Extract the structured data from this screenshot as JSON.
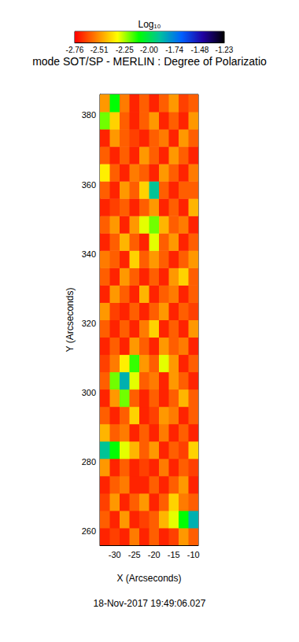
{
  "chart_data": {
    "type": "heatmap",
    "title": "mode SOT/SP - MERLIN : Degree of Polarizatio",
    "x_label": "X (Arcseconds)",
    "y_label": "Y (Arcseconds)",
    "date": "18-Nov-2017 19:49:06.027",
    "xlim": [
      -33.75,
      -8.75
    ],
    "ylim": [
      256,
      386
    ],
    "xticks": [
      -30,
      -25,
      -20,
      -15,
      -10
    ],
    "yticks": [
      260,
      280,
      300,
      320,
      340,
      360,
      380
    ],
    "x_bins": [
      -33.75,
      -31.25,
      -28.75,
      -26.25,
      -23.75,
      -21.25,
      -18.75,
      -16.25,
      -13.75,
      -11.25,
      -8.75
    ],
    "y_bins": [
      256,
      261,
      266,
      271,
      276,
      281,
      286,
      291,
      296,
      301,
      306,
      311,
      316,
      321,
      326,
      331,
      336,
      341,
      346,
      351,
      356,
      361,
      366,
      371,
      376,
      381,
      386
    ],
    "values": [
      [
        -2.7,
        -2.65,
        -2.7,
        -2.55,
        -2.7,
        -2.6,
        -2.7,
        -2.65,
        -2.5,
        -2.6
      ],
      [
        -2.6,
        -2.7,
        -2.5,
        -2.7,
        -2.65,
        -2.6,
        -2.45,
        -2.3,
        -2.1,
        -1.85
      ],
      [
        -2.65,
        -2.5,
        -2.7,
        -2.6,
        -2.5,
        -2.7,
        -2.6,
        -2.4,
        -2.55,
        -2.6
      ],
      [
        -2.7,
        -2.6,
        -2.55,
        -2.7,
        -2.7,
        -2.6,
        -2.7,
        -2.6,
        -2.5,
        -2.7
      ],
      [
        -2.5,
        -2.7,
        -2.6,
        -2.7,
        -2.65,
        -2.7,
        -2.55,
        -2.7,
        -2.6,
        -2.65
      ],
      [
        -1.9,
        -2.1,
        -2.3,
        -2.45,
        -2.6,
        -2.5,
        -2.7,
        -2.6,
        -2.65,
        -2.4
      ],
      [
        -2.45,
        -2.6,
        -2.55,
        -2.7,
        -2.6,
        -2.7,
        -2.55,
        -2.7,
        -2.6,
        -2.7
      ],
      [
        -2.6,
        -2.7,
        -2.6,
        -2.4,
        -2.7,
        -2.65,
        -2.5,
        -2.55,
        -2.7,
        -2.6
      ],
      [
        -2.7,
        -2.5,
        -2.2,
        -2.6,
        -2.7,
        -2.6,
        -2.7,
        -2.6,
        -2.45,
        -2.6
      ],
      [
        -2.6,
        -2.2,
        -1.85,
        -2.3,
        -2.6,
        -2.55,
        -2.7,
        -2.5,
        -2.6,
        -2.7
      ],
      [
        -2.65,
        -2.55,
        -2.35,
        -2.15,
        -2.5,
        -2.6,
        -2.3,
        -2.5,
        -2.7,
        -2.6
      ],
      [
        -2.7,
        -2.6,
        -2.7,
        -2.5,
        -2.6,
        -2.7,
        -2.5,
        -2.6,
        -2.55,
        -2.7
      ],
      [
        -2.6,
        -2.7,
        -2.6,
        -2.7,
        -2.55,
        -2.4,
        -2.7,
        -2.6,
        -2.7,
        -2.5
      ],
      [
        -2.5,
        -2.65,
        -2.7,
        -2.6,
        -2.7,
        -2.6,
        -2.5,
        -2.7,
        -2.6,
        -2.65
      ],
      [
        -2.7,
        -2.5,
        -2.6,
        -2.7,
        -2.45,
        -2.7,
        -2.6,
        -2.55,
        -2.7,
        -2.6
      ],
      [
        -2.6,
        -2.7,
        -2.5,
        -2.6,
        -2.7,
        -2.6,
        -2.7,
        -2.5,
        -2.4,
        -2.6
      ],
      [
        -2.55,
        -2.6,
        -2.7,
        -2.4,
        -2.6,
        -2.5,
        -2.6,
        -2.7,
        -2.6,
        -2.5
      ],
      [
        -2.7,
        -2.6,
        -2.45,
        -2.6,
        -2.7,
        -2.3,
        -2.6,
        -2.5,
        -2.7,
        -2.6
      ],
      [
        -2.6,
        -2.5,
        -2.7,
        -2.5,
        -2.3,
        -2.2,
        -2.45,
        -2.6,
        -2.55,
        -2.7
      ],
      [
        -2.7,
        -2.65,
        -2.6,
        -2.7,
        -2.6,
        -2.5,
        -2.7,
        -2.6,
        -2.7,
        -2.45
      ],
      [
        -2.6,
        -2.7,
        -2.5,
        -2.6,
        -2.4,
        -1.9,
        -2.6,
        -2.7,
        -2.6,
        -2.6
      ],
      [
        -2.35,
        -2.6,
        -2.7,
        -2.55,
        -2.6,
        -2.7,
        -2.5,
        -2.6,
        -2.7,
        -2.55
      ],
      [
        -2.6,
        -2.7,
        -2.6,
        -2.7,
        -2.5,
        -2.6,
        -2.7,
        -2.5,
        -2.6,
        -2.7
      ],
      [
        -2.7,
        -2.5,
        -2.6,
        -2.65,
        -2.7,
        -2.6,
        -2.55,
        -2.7,
        -2.5,
        -2.6
      ],
      [
        -2.2,
        -2.4,
        -2.6,
        -2.7,
        -2.6,
        -2.5,
        -2.7,
        -2.6,
        -2.7,
        -2.5
      ],
      [
        -2.5,
        -2.1,
        -2.55,
        -2.7,
        -2.6,
        -2.7,
        -2.6,
        -2.5,
        -2.65,
        -2.6
      ]
    ],
    "colorbar": {
      "title": "Log₁₀",
      "range": [
        -2.76,
        -1.23
      ],
      "ticks": [
        -2.76,
        -2.51,
        -2.25,
        {
          "value": -2,
          "label": "-2.00"
        },
        -1.74,
        -1.48,
        -1.23
      ],
      "colors": [
        "#ff0000",
        "#ff8000",
        "#ffff00",
        "#00ff00",
        "#00c0a0",
        "#0060ff",
        "#2000a0",
        "#000000"
      ]
    }
  }
}
